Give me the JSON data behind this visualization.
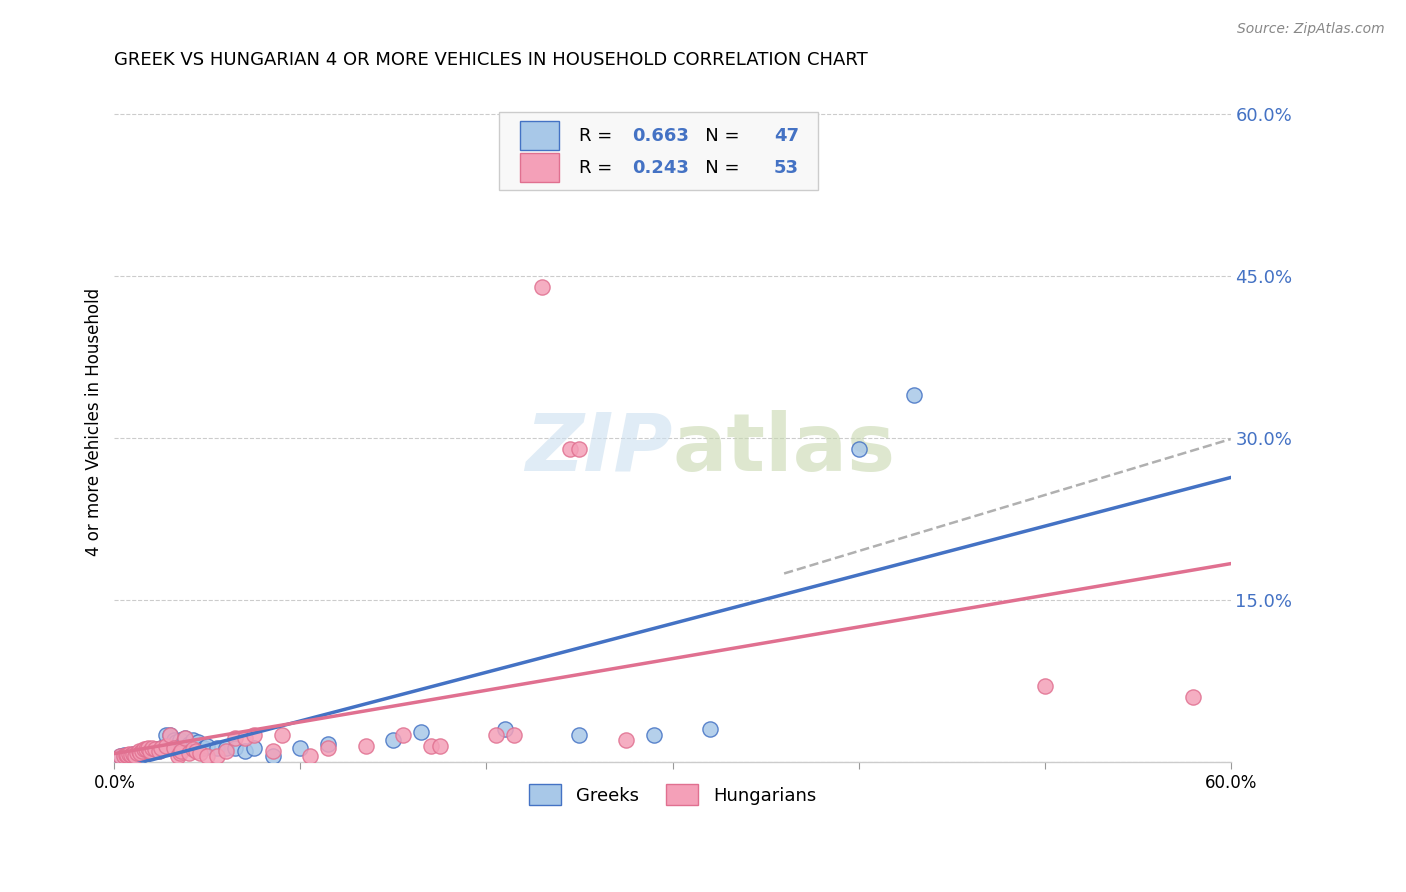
{
  "title": "GREEK VS HUNGARIAN 4 OR MORE VEHICLES IN HOUSEHOLD CORRELATION CHART",
  "source": "Source: ZipAtlas.com",
  "ylabel": "4 or more Vehicles in Household",
  "xlim": [
    0.0,
    0.6
  ],
  "ylim": [
    0.0,
    0.63
  ],
  "yticks": [
    0.0,
    0.15,
    0.3,
    0.45,
    0.6
  ],
  "ytick_labels": [
    "",
    "15.0%",
    "30.0%",
    "45.0%",
    "60.0%"
  ],
  "watermark_line1": "ZIP",
  "watermark_line2": "atlas",
  "greek_R": 0.663,
  "greek_N": 47,
  "hungarian_R": 0.243,
  "hungarian_N": 53,
  "greek_color": "#a8c8e8",
  "hungarian_color": "#f4a0b8",
  "greek_line_color": "#4472c4",
  "hungarian_line_color": "#e07090",
  "trendline_ext_color": "#b0b0b0",
  "legend_label_greek": "Greeks",
  "legend_label_hungarian": "Hungarians",
  "greek_scatter": [
    [
      0.003,
      0.005
    ],
    [
      0.005,
      0.006
    ],
    [
      0.006,
      0.005
    ],
    [
      0.007,
      0.005
    ],
    [
      0.008,
      0.006
    ],
    [
      0.009,
      0.005
    ],
    [
      0.01,
      0.007
    ],
    [
      0.011,
      0.006
    ],
    [
      0.012,
      0.005
    ],
    [
      0.013,
      0.006
    ],
    [
      0.014,
      0.007
    ],
    [
      0.015,
      0.006
    ],
    [
      0.016,
      0.008
    ],
    [
      0.017,
      0.01
    ],
    [
      0.018,
      0.012
    ],
    [
      0.02,
      0.01
    ],
    [
      0.022,
      0.012
    ],
    [
      0.024,
      0.01
    ],
    [
      0.025,
      0.013
    ],
    [
      0.027,
      0.015
    ],
    [
      0.028,
      0.025
    ],
    [
      0.03,
      0.025
    ],
    [
      0.032,
      0.02
    ],
    [
      0.033,
      0.018
    ],
    [
      0.035,
      0.02
    ],
    [
      0.038,
      0.022
    ],
    [
      0.04,
      0.016
    ],
    [
      0.042,
      0.02
    ],
    [
      0.045,
      0.018
    ],
    [
      0.048,
      0.013
    ],
    [
      0.05,
      0.015
    ],
    [
      0.055,
      0.013
    ],
    [
      0.06,
      0.013
    ],
    [
      0.065,
      0.013
    ],
    [
      0.07,
      0.01
    ],
    [
      0.075,
      0.013
    ],
    [
      0.085,
      0.005
    ],
    [
      0.1,
      0.013
    ],
    [
      0.115,
      0.016
    ],
    [
      0.15,
      0.02
    ],
    [
      0.165,
      0.028
    ],
    [
      0.21,
      0.03
    ],
    [
      0.25,
      0.025
    ],
    [
      0.29,
      0.025
    ],
    [
      0.32,
      0.03
    ],
    [
      0.4,
      0.29
    ],
    [
      0.43,
      0.34
    ]
  ],
  "hungarian_scatter": [
    [
      0.003,
      0.005
    ],
    [
      0.005,
      0.005
    ],
    [
      0.006,
      0.006
    ],
    [
      0.007,
      0.006
    ],
    [
      0.008,
      0.007
    ],
    [
      0.009,
      0.006
    ],
    [
      0.01,
      0.007
    ],
    [
      0.011,
      0.005
    ],
    [
      0.012,
      0.008
    ],
    [
      0.013,
      0.01
    ],
    [
      0.014,
      0.008
    ],
    [
      0.015,
      0.01
    ],
    [
      0.016,
      0.012
    ],
    [
      0.017,
      0.012
    ],
    [
      0.018,
      0.013
    ],
    [
      0.019,
      0.01
    ],
    [
      0.02,
      0.013
    ],
    [
      0.022,
      0.012
    ],
    [
      0.024,
      0.01
    ],
    [
      0.025,
      0.013
    ],
    [
      0.028,
      0.015
    ],
    [
      0.03,
      0.025
    ],
    [
      0.032,
      0.013
    ],
    [
      0.034,
      0.005
    ],
    [
      0.035,
      0.008
    ],
    [
      0.036,
      0.01
    ],
    [
      0.038,
      0.022
    ],
    [
      0.04,
      0.008
    ],
    [
      0.042,
      0.012
    ],
    [
      0.044,
      0.01
    ],
    [
      0.046,
      0.008
    ],
    [
      0.05,
      0.005
    ],
    [
      0.055,
      0.005
    ],
    [
      0.06,
      0.01
    ],
    [
      0.065,
      0.022
    ],
    [
      0.07,
      0.022
    ],
    [
      0.075,
      0.025
    ],
    [
      0.085,
      0.01
    ],
    [
      0.09,
      0.025
    ],
    [
      0.105,
      0.005
    ],
    [
      0.115,
      0.013
    ],
    [
      0.135,
      0.015
    ],
    [
      0.155,
      0.025
    ],
    [
      0.17,
      0.015
    ],
    [
      0.175,
      0.015
    ],
    [
      0.205,
      0.025
    ],
    [
      0.215,
      0.025
    ],
    [
      0.23,
      0.44
    ],
    [
      0.245,
      0.29
    ],
    [
      0.25,
      0.29
    ],
    [
      0.275,
      0.02
    ],
    [
      0.5,
      0.07
    ],
    [
      0.58,
      0.06
    ]
  ]
}
